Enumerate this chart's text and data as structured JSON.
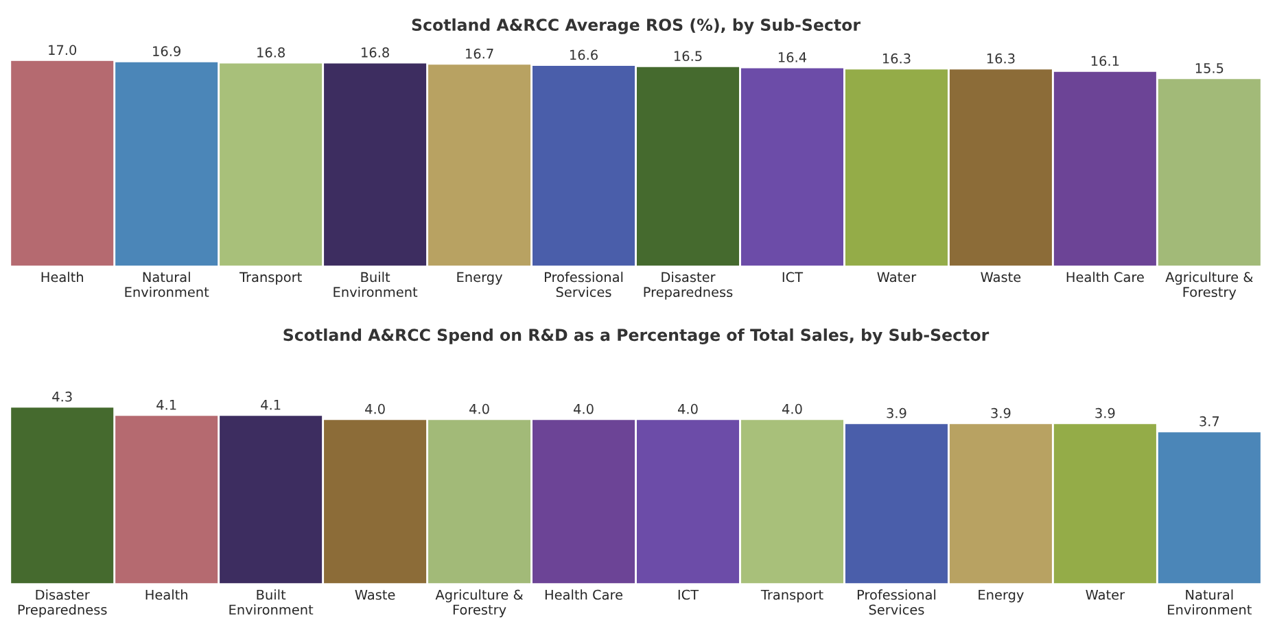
{
  "chart_data": [
    {
      "type": "bar",
      "title": "Scotland A&RCC Average ROS (%), by Sub-Sector",
      "categories": [
        "Health",
        "Natural Environment",
        "Transport",
        "Built Environment",
        "Energy",
        "Professional Services",
        "Disaster Preparedness",
        "ICT",
        "Water",
        "Waste",
        "Health Care",
        "Agriculture & Forestry"
      ],
      "values": [
        17.0,
        16.9,
        16.8,
        16.8,
        16.7,
        16.6,
        16.5,
        16.4,
        16.3,
        16.3,
        16.1,
        15.5
      ],
      "colors": [
        "#b56a70",
        "#4b86b8",
        "#a8c07a",
        "#3d2d60",
        "#b8a262",
        "#4a5eaa",
        "#456a2e",
        "#6c4ca8",
        "#94ac48",
        "#8c6c38",
        "#6c4496",
        "#a2ba78"
      ],
      "value_labels": [
        "17.0",
        "16.9",
        "16.8",
        "16.8",
        "16.7",
        "16.6",
        "16.5",
        "16.4",
        "16.3",
        "16.3",
        "16.1",
        "15.5"
      ],
      "tick_labels": "x",
      "grid": false,
      "legend": false
    },
    {
      "type": "bar",
      "title": "Scotland A&RCC Spend on R&D as a Percentage of Total Sales, by Sub-Sector",
      "categories": [
        "Disaster Preparedness",
        "Health",
        "Built Environment",
        "Waste",
        "Agriculture & Forestry",
        "Health Care",
        "ICT",
        "Transport",
        "Professional Services",
        "Energy",
        "Water",
        "Natural Environment"
      ],
      "values": [
        4.3,
        4.1,
        4.1,
        4.0,
        4.0,
        4.0,
        4.0,
        4.0,
        3.9,
        3.9,
        3.9,
        3.7
      ],
      "colors": [
        "#456a2e",
        "#b56a70",
        "#3d2d60",
        "#8c6c38",
        "#a2ba78",
        "#6c4496",
        "#6c4ca8",
        "#a8c07a",
        "#4a5eaa",
        "#b8a262",
        "#94ac48",
        "#4b86b8"
      ],
      "value_labels": [
        "4.3",
        "4.1",
        "4.1",
        "4.0",
        "4.0",
        "4.0",
        "4.0",
        "4.0",
        "3.9",
        "3.9",
        "3.9",
        "3.7"
      ],
      "tick_labels": "x",
      "grid": false,
      "legend": false
    }
  ]
}
